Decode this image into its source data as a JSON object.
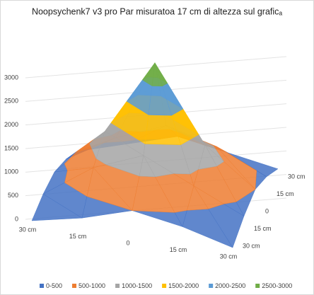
{
  "chart_data": {
    "type": "surface",
    "title": "Noopsychenk7 v3 pro Par  misuratoa 17 cm di altezza sul graficₐ",
    "categories": [
      "30 cm",
      "15 cm",
      "0",
      "15 cm",
      "30 cm"
    ],
    "series": [
      {
        "name": "30 cm",
        "values": [
          0,
          200,
          500,
          300,
          0
        ]
      },
      {
        "name": "15 cm",
        "values": [
          200,
          900,
          1300,
          800,
          300
        ]
      },
      {
        "name": "0",
        "values": [
          300,
          1300,
          2900,
          1300,
          500
        ]
      },
      {
        "name": "15 cm",
        "values": [
          200,
          800,
          1200,
          900,
          400
        ]
      },
      {
        "name": "30 cm",
        "values": [
          0,
          300,
          600,
          400,
          200
        ]
      }
    ],
    "bands": [
      {
        "name": "0-500",
        "color": "#4472c4"
      },
      {
        "name": "500-1000",
        "color": "#ed7d31"
      },
      {
        "name": "1000-1500",
        "color": "#a5a5a5"
      },
      {
        "name": "1500-2000",
        "color": "#ffc000"
      },
      {
        "name": "2000-2500",
        "color": "#5b9bd5"
      },
      {
        "name": "2500-3000",
        "color": "#70ad47"
      }
    ],
    "ylim": [
      0,
      3000
    ],
    "yticks": [
      0,
      500,
      1000,
      1500,
      2000,
      2500,
      3000
    ],
    "grid": true
  }
}
